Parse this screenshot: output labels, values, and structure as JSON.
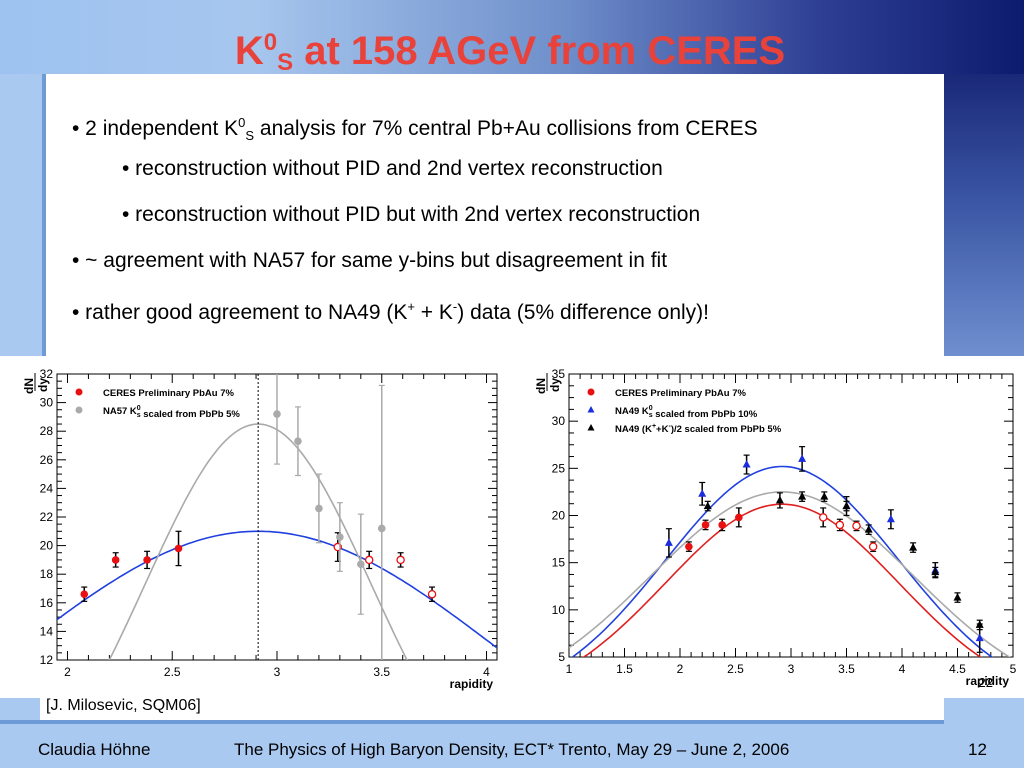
{
  "slide": {
    "title_main": "K",
    "title_sup": "0",
    "title_sub": "S",
    "title_rest": " at 158 AGeV from CERES",
    "bullets": [
      {
        "parts": [
          "• 2 independent K",
          "0",
          "S",
          " analysis for 7% central Pb+Au collisions from CERES"
        ]
      },
      {
        "text": "• reconstruction without PID and 2nd vertex reconstruction"
      },
      {
        "text": "• reconstruction without PID but with 2nd vertex reconstruction"
      },
      {
        "text": "• ~ agreement with NA57 for same y-bins but disagreement in fit"
      },
      {
        "parts": [
          "• rather good agreement to NA49 (K",
          "+",
          " + K",
          "-",
          ") data (5% difference only)!"
        ]
      }
    ],
    "reference": "[J. Milosevic, SQM06]",
    "footer_author": "Claudia Höhne",
    "footer_event": "The Physics of High Baryon Density, ECT* Trento, May 29 – June 2, 2006",
    "page_number": "12",
    "colors": {
      "title": "#e8423a",
      "ceres": "#e81010",
      "na57": "#aaaaaa",
      "na49_k0s": "#1a2ee0",
      "na49_kpm": "#000000",
      "fit_blue": "#2040e0",
      "fit_gray": "#aaaaaa",
      "fit_red": "#e02020"
    }
  },
  "chart_data": [
    {
      "type": "scatter",
      "xlabel": "rapidity",
      "ylabel_num": "dN",
      "ylabel_den": "dy",
      "xlim": [
        1.95,
        4.05
      ],
      "ylim": [
        12,
        32
      ],
      "xticks": [
        2,
        2.5,
        3,
        3.5,
        4
      ],
      "yticks": [
        12,
        14,
        16,
        18,
        20,
        22,
        24,
        26,
        28,
        30,
        32
      ],
      "vline_x": 2.91,
      "legend": [
        {
          "label": "CERES Preliminary PbAu 7%",
          "color": "#e81010"
        },
        {
          "label": "NA57 K",
          "sup": "0",
          "sub": "s",
          "rest": " scaled from PbPb 5%",
          "color": "#aaaaaa"
        }
      ],
      "series": [
        {
          "name": "CERES Preliminary PbAu 7%",
          "marker": "filled",
          "color": "#e81010",
          "points": [
            [
              2.08,
              16.6,
              0.5
            ],
            [
              2.23,
              19.0,
              0.5
            ],
            [
              2.38,
              19.0,
              0.6
            ],
            [
              2.53,
              19.8,
              1.2
            ]
          ]
        },
        {
          "name": "CERES Preliminary PbAu 7% (reflected)",
          "marker": "open",
          "color": "#e81010",
          "points": [
            [
              3.29,
              19.9,
              1.0
            ],
            [
              3.44,
              19.0,
              0.6
            ],
            [
              3.59,
              19.0,
              0.5
            ],
            [
              3.74,
              16.6,
              0.5
            ]
          ]
        },
        {
          "name": "NA57 K0s scaled from PbPb 5%",
          "marker": "filled",
          "color": "#aaaaaa",
          "points": [
            [
              3.0,
              29.2,
              3.5
            ],
            [
              3.1,
              27.3,
              2.4
            ],
            [
              3.2,
              22.6,
              2.4
            ],
            [
              3.3,
              20.6,
              2.4
            ],
            [
              3.4,
              18.7,
              3.5
            ],
            [
              3.5,
              21.2,
              10.0
            ]
          ]
        }
      ],
      "curves": [
        {
          "color": "#2040e0",
          "kind": "gauss",
          "A": 21.0,
          "mu": 2.91,
          "sigma": 1.15
        },
        {
          "color": "#aaaaaa",
          "kind": "gauss",
          "A": 28.5,
          "mu": 2.91,
          "sigma": 0.54
        }
      ]
    },
    {
      "type": "scatter",
      "xlabel": "rapidity",
      "ylabel_num": "dN",
      "ylabel_den": "dy",
      "xlim": [
        1,
        5
      ],
      "ylim": [
        5,
        35
      ],
      "xticks": [
        1,
        1.5,
        2,
        2.5,
        3,
        3.5,
        4,
        4.5,
        5
      ],
      "yticks": [
        5,
        10,
        15,
        20,
        25,
        30,
        35
      ],
      "corner_label": "22",
      "legend": [
        {
          "label": "CERES Preliminary PbAu 7%",
          "color": "#e81010",
          "marker": "circle"
        },
        {
          "label": "NA49 K",
          "sup": "0",
          "sub": "s",
          "rest": " scaled from PbPb 10%",
          "color": "#1a2ee0",
          "marker": "triangle"
        },
        {
          "label": "NA49 (K",
          "sup": "+",
          "mid": "+K",
          "sup2": "-",
          "rest": ")/2 scaled from PbPb 5%",
          "color": "#000000",
          "marker": "triangle"
        }
      ],
      "series": [
        {
          "name": "CERES Preliminary PbAu 7%",
          "marker": "circle-filled",
          "color": "#e81010",
          "points": [
            [
              2.08,
              16.7,
              0.5
            ],
            [
              2.23,
              19.0,
              0.5
            ],
            [
              2.38,
              19.0,
              0.6
            ],
            [
              2.53,
              19.8,
              1.0
            ]
          ]
        },
        {
          "name": "CERES Preliminary PbAu 7% (reflected)",
          "marker": "circle-open",
          "color": "#e81010",
          "points": [
            [
              3.29,
              19.8,
              1.0
            ],
            [
              3.44,
              19.0,
              0.6
            ],
            [
              3.59,
              18.9,
              0.5
            ],
            [
              3.74,
              16.7,
              0.5
            ]
          ]
        },
        {
          "name": "NA49 K0s scaled from PbPb 10%",
          "marker": "triangle",
          "color": "#1a2ee0",
          "points": [
            [
              1.9,
              17.1,
              1.5
            ],
            [
              2.2,
              22.3,
              1.2
            ],
            [
              2.6,
              25.4,
              1.0
            ],
            [
              3.1,
              26.0,
              1.3
            ],
            [
              3.5,
              21.0,
              1.0
            ],
            [
              3.9,
              19.6,
              1.0
            ],
            [
              4.3,
              14.2,
              0.8
            ],
            [
              4.7,
              7.0,
              1.5
            ]
          ]
        },
        {
          "name": "NA49 (K+ + K-)/2 scaled from PbPb 5%",
          "marker": "triangle",
          "color": "#000000",
          "points": [
            [
              2.25,
              21.0,
              0.5
            ],
            [
              2.9,
              21.6,
              0.8
            ],
            [
              3.1,
              22.0,
              0.5
            ],
            [
              3.3,
              22.0,
              0.5
            ],
            [
              3.5,
              21.0,
              0.5
            ],
            [
              3.7,
              18.5,
              0.5
            ],
            [
              4.1,
              16.6,
              0.5
            ],
            [
              4.3,
              14.0,
              0.5
            ],
            [
              4.5,
              11.3,
              0.5
            ],
            [
              4.7,
              8.4,
              0.5
            ]
          ]
        }
      ],
      "curves": [
        {
          "color": "#2040e0",
          "kind": "gauss",
          "A": 25.2,
          "mu": 2.92,
          "sigma": 1.05
        },
        {
          "color": "#aaaaaa",
          "kind": "gauss",
          "A": 22.5,
          "mu": 2.92,
          "sigma": 1.18
        },
        {
          "color": "#e02020",
          "kind": "gauss",
          "A": 21.2,
          "mu": 2.92,
          "sigma": 1.05
        }
      ]
    }
  ]
}
